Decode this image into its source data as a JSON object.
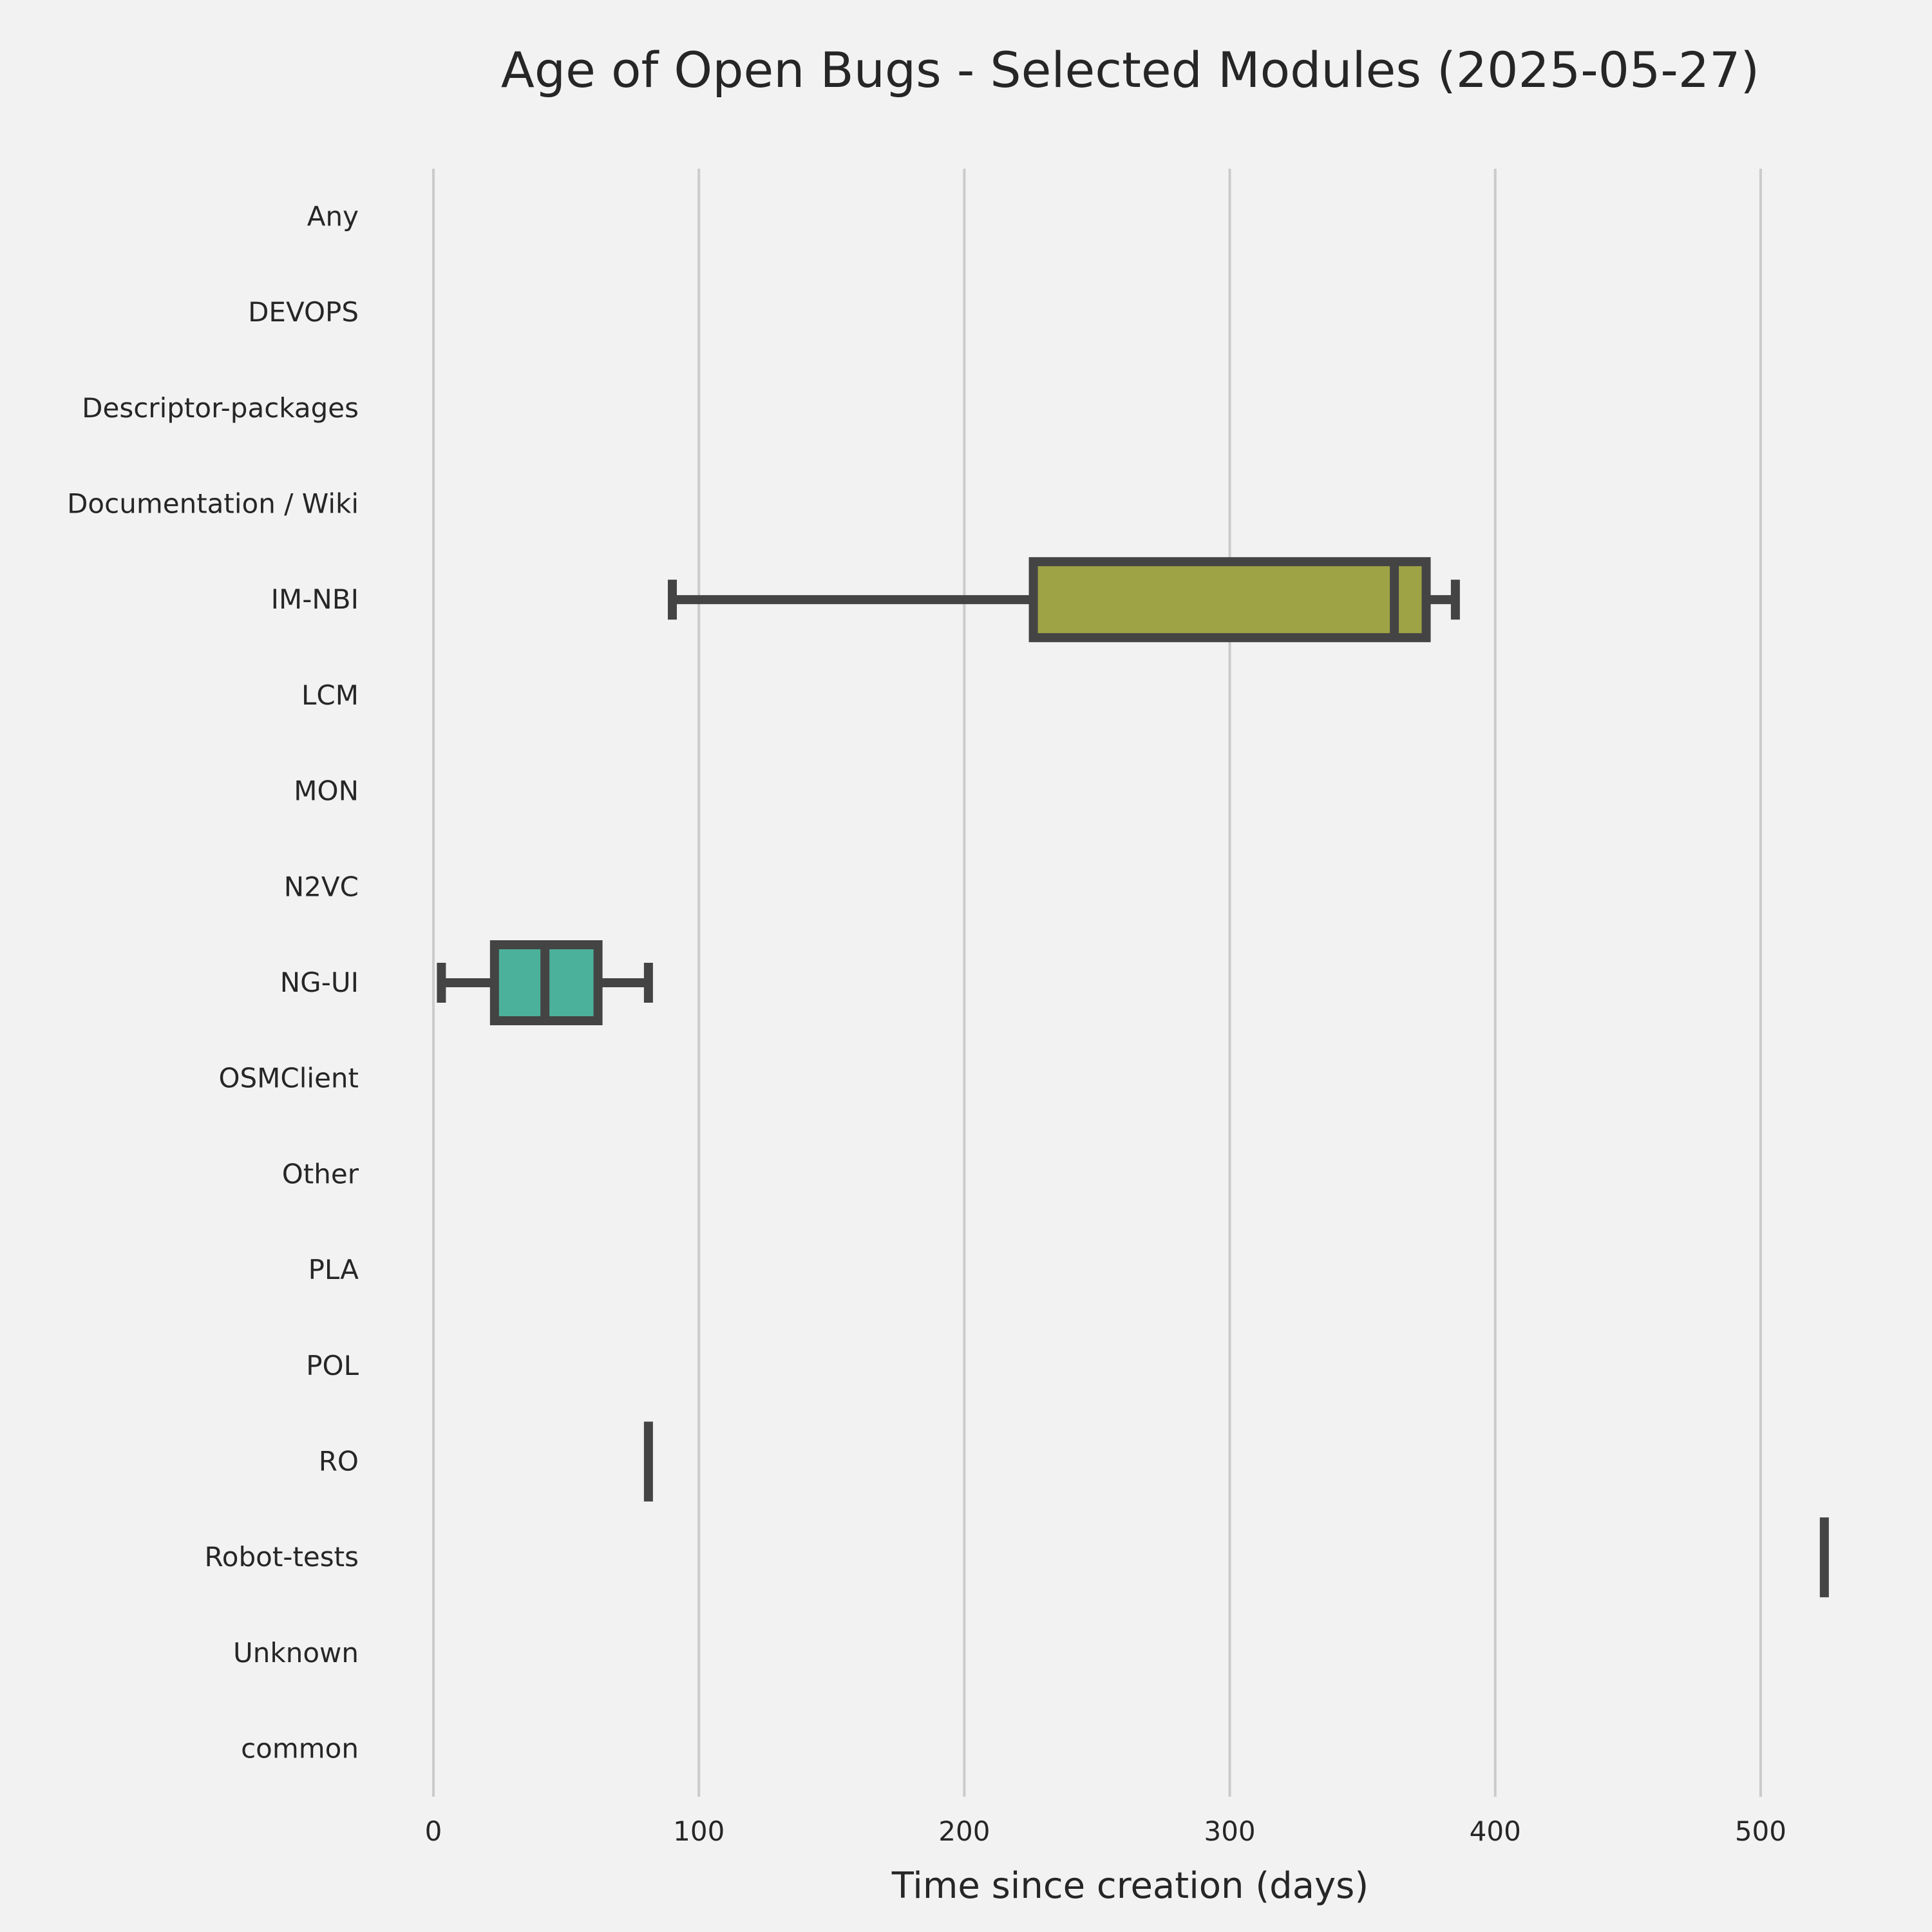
{
  "chart_data": {
    "type": "boxplot",
    "orientation": "horizontal",
    "title": "Age of Open Bugs - Selected Modules (2025-05-27)",
    "xlabel": "Time since creation (days)",
    "ylabel": "",
    "xlim": [
      -25,
      550
    ],
    "xticks": [
      0,
      100,
      200,
      300,
      400,
      500
    ],
    "xtick_labels": [
      "0",
      "100",
      "200",
      "300",
      "400",
      "500"
    ],
    "grid": "vertical",
    "line_color": "#444444",
    "categories": [
      "Any",
      "DEVOPS",
      "Descriptor-packages",
      "Documentation / Wiki",
      "IM-NBI",
      "LCM",
      "MON",
      "N2VC",
      "NG-UI",
      "OSMClient",
      "Other",
      "PLA",
      "POL",
      "RO",
      "Robot-tests",
      "Unknown",
      "common"
    ],
    "boxes": [
      {
        "category": "IM-NBI",
        "whisker_low": 90,
        "q1": 226,
        "median": 362,
        "q3": 374,
        "whisker_high": 385,
        "color": "#9ea346"
      },
      {
        "category": "NG-UI",
        "whisker_low": 3,
        "q1": 23,
        "median": 42,
        "q3": 62,
        "whisker_high": 81,
        "color": "#4bb19a"
      },
      {
        "category": "RO",
        "whisker_low": 81,
        "q1": 81,
        "median": 81,
        "q3": 81,
        "whisker_high": 81,
        "color": "#444444"
      },
      {
        "category": "Robot-tests",
        "whisker_low": 524,
        "q1": 524,
        "median": 524,
        "q3": 524,
        "whisker_high": 524,
        "color": "#444444"
      }
    ]
  }
}
